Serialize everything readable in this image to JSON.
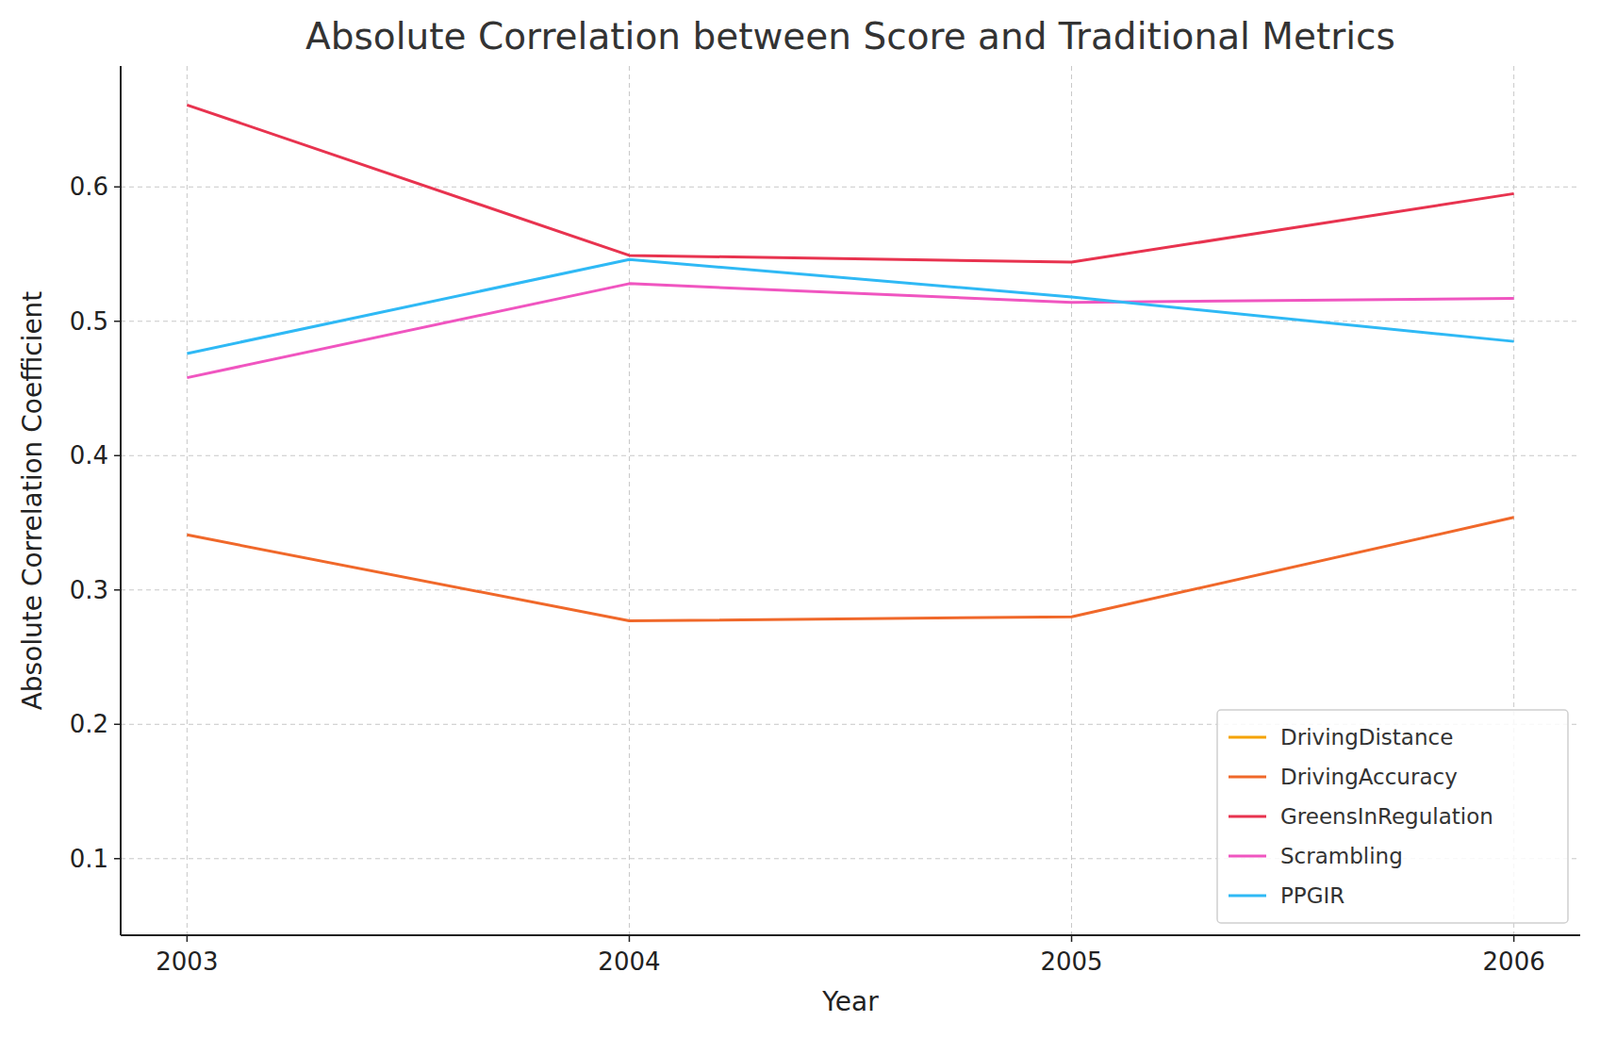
{
  "chart_data": {
    "type": "line",
    "title": "Absolute Correlation between Score and Traditional Metrics",
    "x_label": "Year",
    "y_label": "Absolute Correlation Coefficient",
    "x": [
      2003,
      2004,
      2005,
      2006
    ],
    "xlim": [
      2002.85,
      2006.15
    ],
    "xticks": [
      2003,
      2004,
      2005,
      2006
    ],
    "ylim": [
      0.043,
      0.69
    ],
    "yticks": [
      0.1,
      0.2,
      0.3,
      0.4,
      0.5,
      0.6
    ],
    "grid": true,
    "legend": "lower right",
    "series": [
      {
        "name": "DrivingDistance",
        "color": "#f5a300",
        "values": [
          null,
          null,
          null,
          null
        ]
      },
      {
        "name": "DrivingAccuracy",
        "color": "#f0682a",
        "values": [
          0.341,
          0.277,
          0.28,
          0.354
        ]
      },
      {
        "name": "GreensInRegulation",
        "color": "#e8334f",
        "values": [
          0.661,
          0.549,
          0.544,
          0.595
        ]
      },
      {
        "name": "Scrambling",
        "color": "#f055c0",
        "values": [
          0.458,
          0.528,
          0.514,
          0.517
        ]
      },
      {
        "name": "PPGIR",
        "color": "#2fb9f5",
        "values": [
          0.476,
          0.546,
          0.518,
          0.485
        ]
      }
    ]
  }
}
